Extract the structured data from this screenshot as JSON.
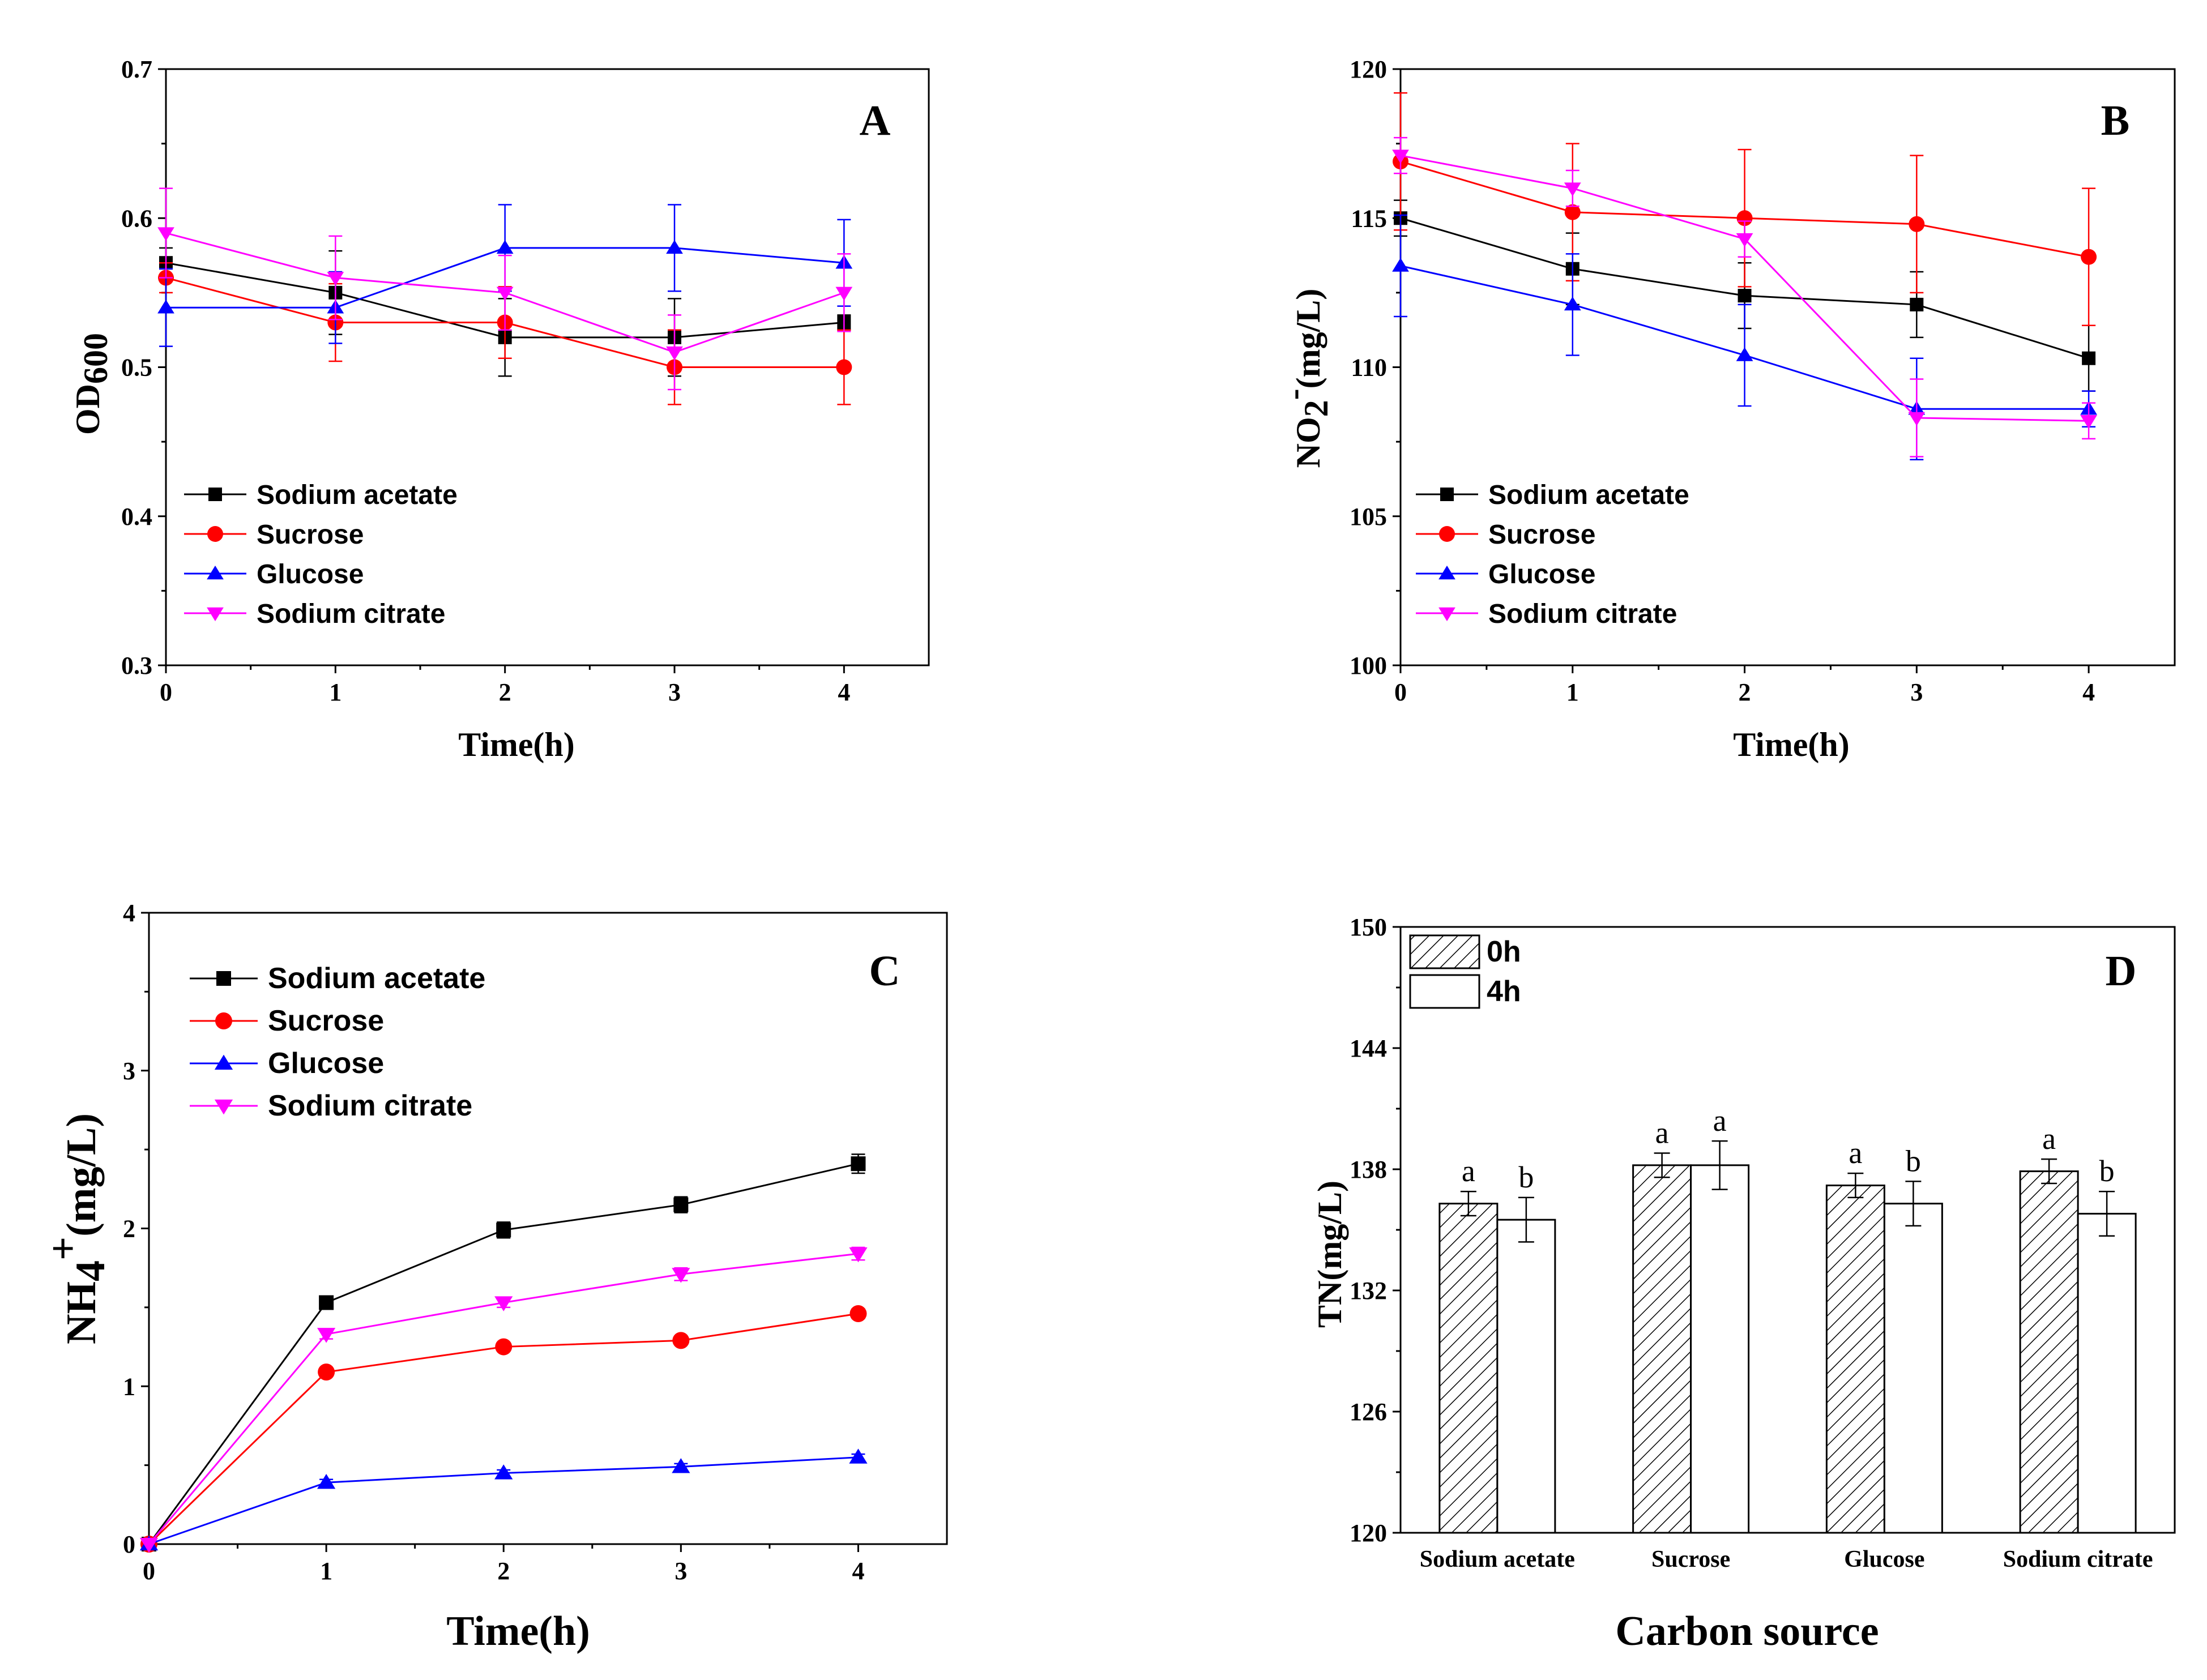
{
  "colors": {
    "Sodium acetate": "#000000",
    "Sucrose": "#ff0000",
    "Glucose": "#0000ff",
    "Sodium citrate": "#ff00ff"
  },
  "chart_data": [
    {
      "type": "line",
      "panel": "A",
      "xlabel": "Time(h)",
      "ylabel": "OD600",
      "ylabel_main": "OD",
      "ylabel_sub": "600",
      "x": [
        0,
        1,
        2,
        3,
        4
      ],
      "x_ticks": [
        "0",
        "1",
        "2",
        "3",
        "4"
      ],
      "xlim": [
        0,
        4.5
      ],
      "ylim": [
        0.3,
        0.7
      ],
      "y_ticks": [
        "0.3",
        "0.4",
        "0.5",
        "0.6",
        "0.7"
      ],
      "legend_position": "lower-left",
      "series": [
        {
          "name": "Sodium acetate",
          "marker": "square",
          "values": [
            0.57,
            0.55,
            0.52,
            0.52,
            0.53
          ],
          "errors": [
            0.01,
            0.028,
            0.026,
            0.026,
            0.005
          ]
        },
        {
          "name": "Sucrose",
          "marker": "circle",
          "values": [
            0.56,
            0.53,
            0.53,
            0.5,
            0.5
          ],
          "errors": [
            0.01,
            0.026,
            0.024,
            0.025,
            0.025
          ]
        },
        {
          "name": "Glucose",
          "marker": "triangle-up",
          "values": [
            0.54,
            0.54,
            0.58,
            0.58,
            0.57
          ],
          "errors": [
            0.026,
            0.024,
            0.029,
            0.029,
            0.029
          ]
        },
        {
          "name": "Sodium citrate",
          "marker": "triangle-down",
          "values": [
            0.59,
            0.56,
            0.55,
            0.51,
            0.55
          ],
          "errors": [
            0.03,
            0.028,
            0.025,
            0.025,
            0.026
          ]
        }
      ]
    },
    {
      "type": "line",
      "panel": "B",
      "xlabel": "Time(h)",
      "ylabel": "NO2-(mg/L)",
      "ylabel_main": "NO",
      "ylabel_sub": "2",
      "ylabel_sup": "-",
      "ylabel_unit": "(mg/L)",
      "x": [
        0,
        1,
        2,
        3,
        4
      ],
      "x_ticks": [
        "0",
        "1",
        "2",
        "3",
        "4"
      ],
      "xlim": [
        0,
        4.5
      ],
      "ylim": [
        100,
        120
      ],
      "y_ticks": [
        "100",
        "105",
        "110",
        "115",
        "120"
      ],
      "legend_position": "lower-left",
      "series": [
        {
          "name": "Sodium acetate",
          "marker": "square",
          "values": [
            115.0,
            113.3,
            112.4,
            112.1,
            110.3
          ],
          "errors": [
            0.6,
            1.2,
            1.1,
            1.1,
            1.1
          ]
        },
        {
          "name": "Sucrose",
          "marker": "circle",
          "values": [
            116.9,
            115.2,
            115.0,
            114.8,
            113.7
          ],
          "errors": [
            2.3,
            2.3,
            2.3,
            2.3,
            2.3
          ]
        },
        {
          "name": "Glucose",
          "marker": "triangle-up",
          "values": [
            113.4,
            112.1,
            110.4,
            108.6,
            108.6
          ],
          "errors": [
            1.7,
            1.7,
            1.7,
            1.7,
            0.6
          ]
        },
        {
          "name": "Sodium citrate",
          "marker": "triangle-down",
          "values": [
            117.1,
            116.0,
            114.3,
            108.3,
            108.2
          ],
          "errors": [
            0.6,
            0.6,
            0.6,
            1.3,
            0.6
          ]
        }
      ]
    },
    {
      "type": "line",
      "panel": "C",
      "xlabel": "Time(h)",
      "ylabel": "NH4+(mg/L)",
      "ylabel_main": "NH",
      "ylabel_sub": "4",
      "ylabel_sup": "+",
      "ylabel_unit": "(mg/L)",
      "x": [
        0,
        1,
        2,
        3,
        4
      ],
      "x_ticks": [
        "0",
        "1",
        "2",
        "3",
        "4"
      ],
      "xlim": [
        0,
        4.5
      ],
      "ylim": [
        0,
        4
      ],
      "y_ticks": [
        "0",
        "1",
        "2",
        "3",
        "4"
      ],
      "legend_position": "upper-left",
      "series": [
        {
          "name": "Sodium acetate",
          "marker": "square",
          "values": [
            0,
            1.53,
            1.99,
            2.15,
            2.41
          ],
          "errors": [
            0,
            0.03,
            0.05,
            0.05,
            0.06
          ]
        },
        {
          "name": "Sucrose",
          "marker": "circle",
          "values": [
            0,
            1.09,
            1.25,
            1.29,
            1.46
          ],
          "errors": [
            0,
            0.02,
            0.02,
            0.02,
            0.03
          ]
        },
        {
          "name": "Glucose",
          "marker": "triangle-up",
          "values": [
            0,
            0.39,
            0.45,
            0.49,
            0.55
          ],
          "errors": [
            0,
            0.02,
            0.02,
            0.02,
            0.02
          ]
        },
        {
          "name": "Sodium citrate",
          "marker": "triangle-down",
          "values": [
            0,
            1.33,
            1.53,
            1.71,
            1.84
          ],
          "errors": [
            0,
            0.03,
            0.03,
            0.04,
            0.04
          ]
        }
      ]
    },
    {
      "type": "bar",
      "panel": "D",
      "xlabel": "Carbon source",
      "ylabel": "TN(mg/L)",
      "categories": [
        "Sodium acetate",
        "Sucrose",
        "Glucose",
        "Sodium citrate"
      ],
      "ylim": [
        120,
        150
      ],
      "y_ticks": [
        "120",
        "126",
        "132",
        "138",
        "144",
        "150"
      ],
      "legend_position": "upper-left",
      "series": [
        {
          "name": "0h",
          "pattern": "hatched",
          "values": [
            136.3,
            138.2,
            137.2,
            137.9
          ],
          "errors": [
            0.6,
            0.6,
            0.6,
            0.6
          ],
          "letters": [
            "a",
            "a",
            "a",
            "a"
          ]
        },
        {
          "name": "4h",
          "pattern": "open",
          "values": [
            135.5,
            138.2,
            136.3,
            135.8
          ],
          "errors": [
            1.1,
            1.2,
            1.1,
            1.1
          ],
          "letters": [
            "b",
            "a",
            "b",
            "b"
          ]
        }
      ]
    }
  ]
}
